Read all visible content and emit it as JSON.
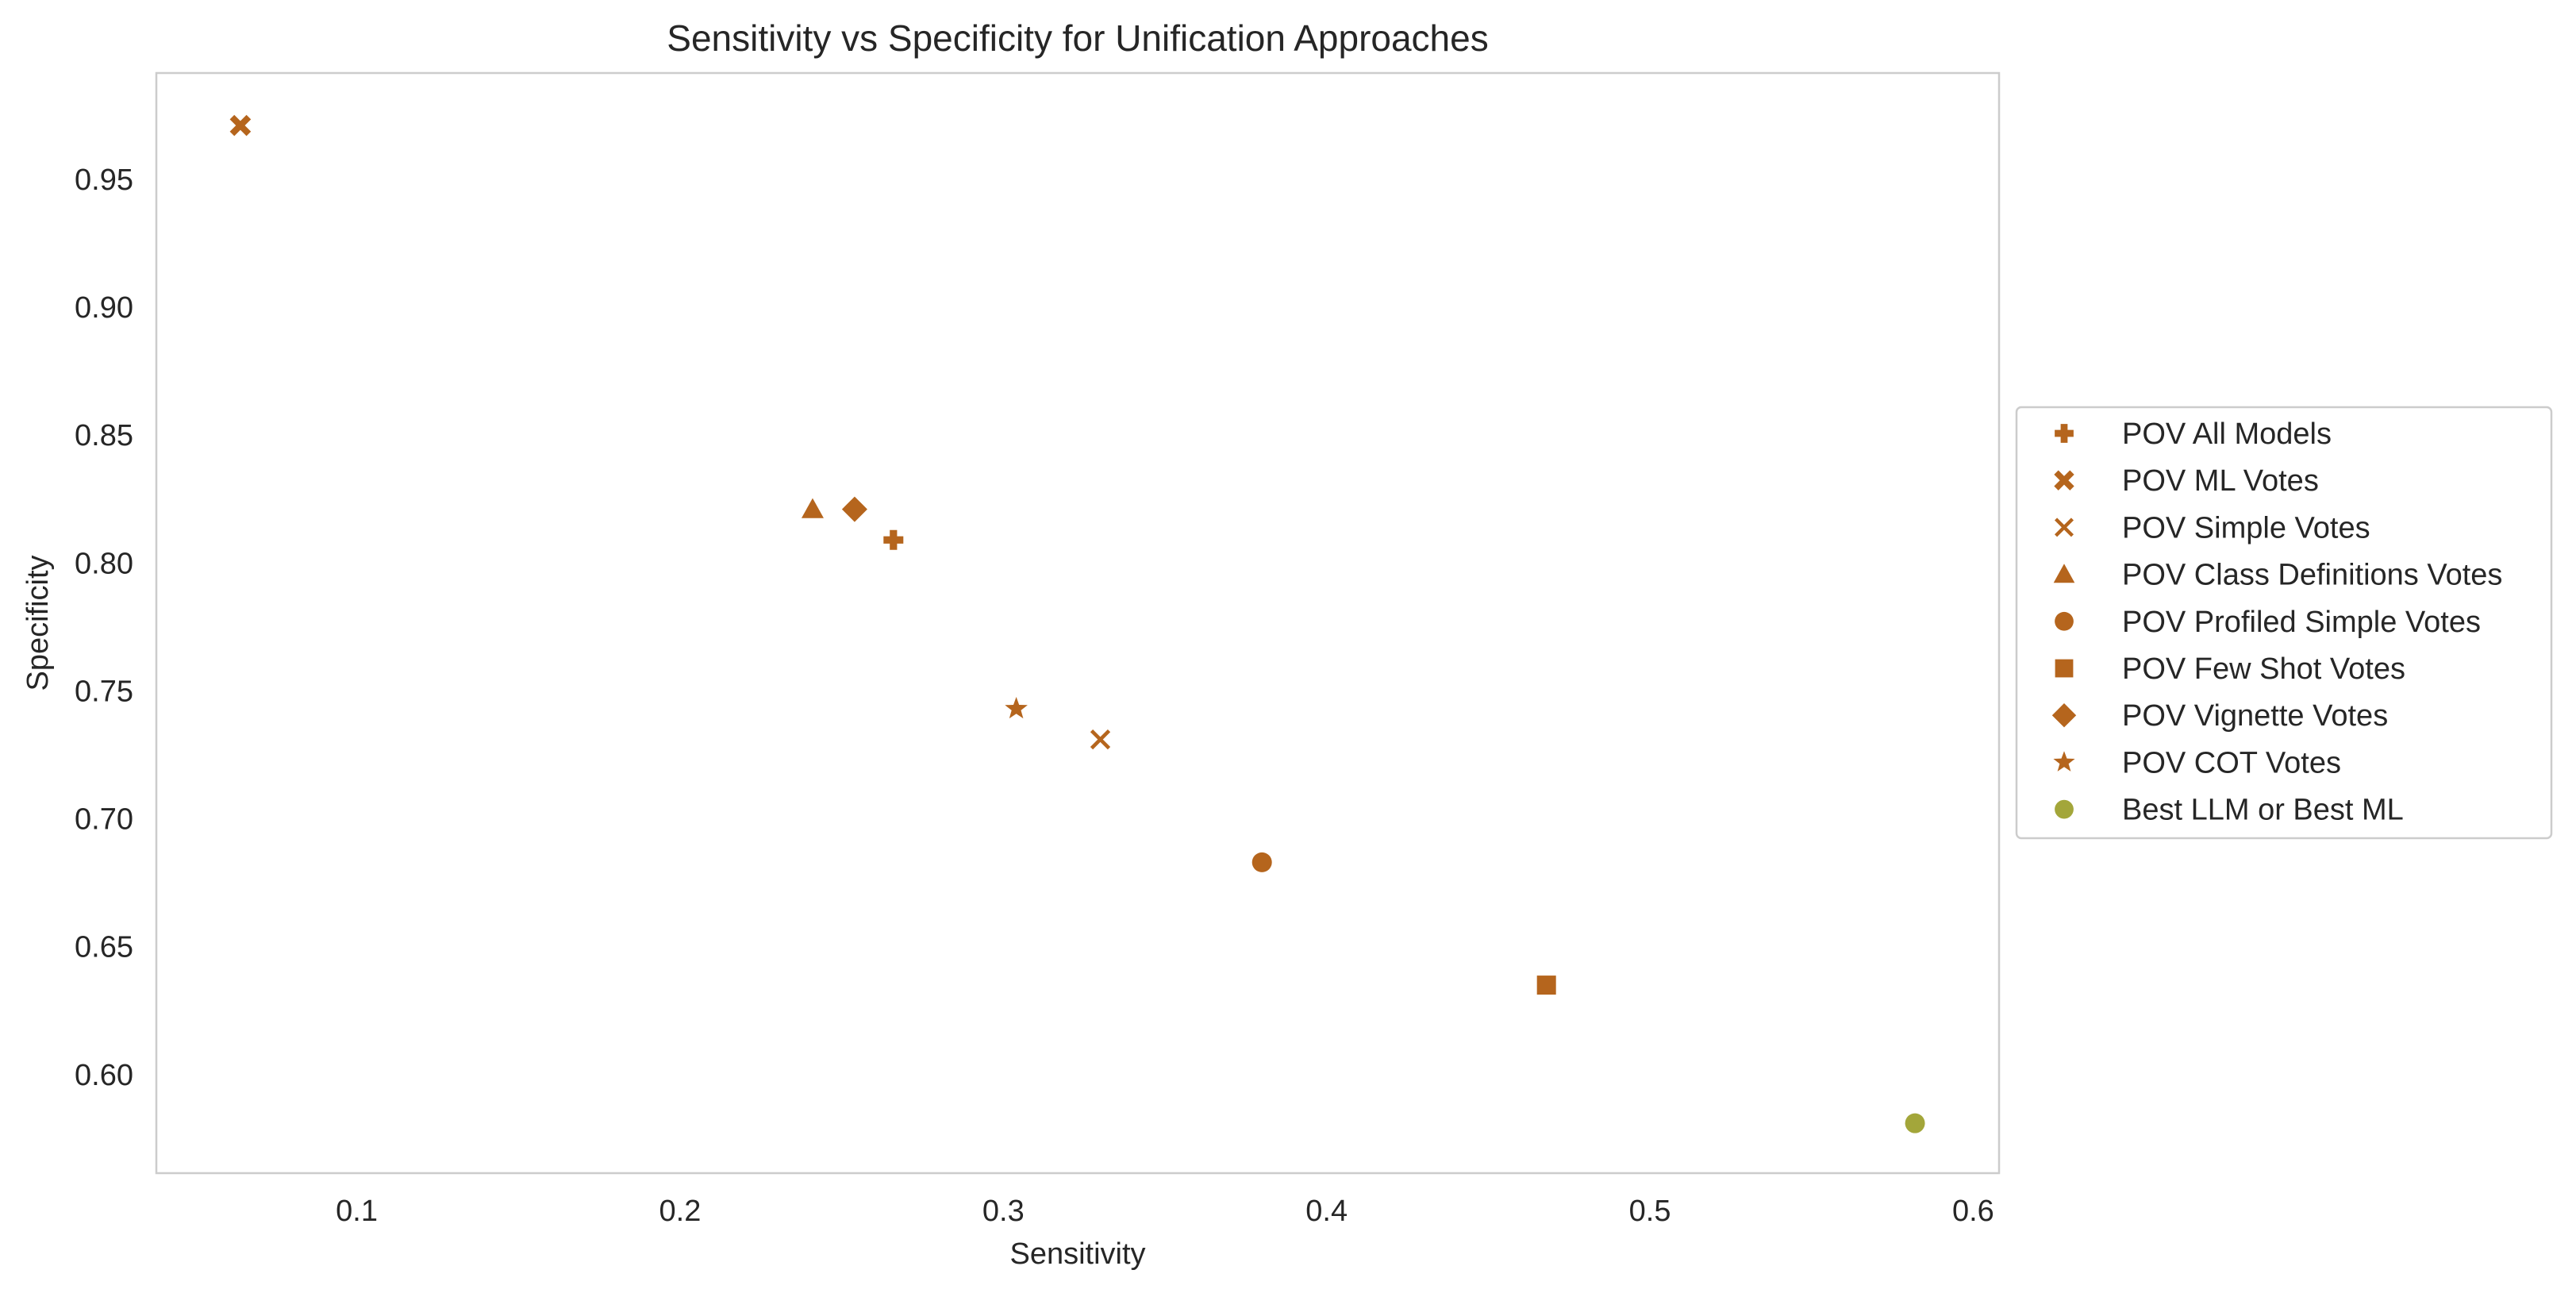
{
  "chart_data": {
    "type": "scatter",
    "title": "Sensitivity vs Specificity for Unification Approaches",
    "xlabel": "Sensitivity",
    "ylabel": "Specificity",
    "xlim": [
      0.038,
      0.608
    ],
    "ylim": [
      0.5615,
      0.9915
    ],
    "xticks": [
      0.1,
      0.2,
      0.3,
      0.4,
      0.5,
      0.6
    ],
    "yticks": [
      0.6,
      0.65,
      0.7,
      0.75,
      0.8,
      0.85,
      0.9,
      0.95
    ],
    "xtick_labels": [
      "0.1",
      "0.2",
      "0.3",
      "0.4",
      "0.5",
      "0.6"
    ],
    "ytick_labels": [
      "0.60",
      "0.65",
      "0.70",
      "0.75",
      "0.80",
      "0.85",
      "0.90",
      "0.95"
    ],
    "grid": false,
    "legend_placement": "outside-right",
    "series": [
      {
        "name": "POV All Models",
        "marker": "plus",
        "color": "#b5651d",
        "x": 0.266,
        "y": 0.809
      },
      {
        "name": "POV ML Votes",
        "marker": "x-bold",
        "color": "#b5651d",
        "x": 0.064,
        "y": 0.971
      },
      {
        "name": "POV Simple Votes",
        "marker": "x-thin",
        "color": "#b5651d",
        "x": 0.33,
        "y": 0.731
      },
      {
        "name": "POV Class Definitions Votes",
        "marker": "triangle",
        "color": "#b5651d",
        "x": 0.241,
        "y": 0.821
      },
      {
        "name": "POV Profiled Simple Votes",
        "marker": "circle",
        "color": "#b5651d",
        "x": 0.38,
        "y": 0.683
      },
      {
        "name": "POV Few Shot Votes",
        "marker": "square",
        "color": "#b5651d",
        "x": 0.468,
        "y": 0.635
      },
      {
        "name": "POV Vignette Votes",
        "marker": "diamond",
        "color": "#b5651d",
        "x": 0.254,
        "y": 0.821
      },
      {
        "name": "POV COT Votes",
        "marker": "star",
        "color": "#b5651d",
        "x": 0.304,
        "y": 0.743
      },
      {
        "name": "Best LLM or Best ML",
        "marker": "circle",
        "color": "#a3a63a",
        "x": 0.582,
        "y": 0.581
      }
    ]
  }
}
